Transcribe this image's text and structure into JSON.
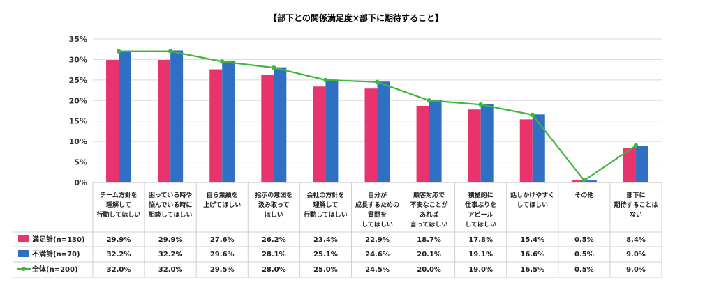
{
  "chart_data": {
    "type": "bar",
    "title": "【部下との関係満足度×部下に期待すること】",
    "categories": [
      [
        "チーム方針を",
        "理解して",
        "行動してほしい"
      ],
      [
        "困っている時や",
        "悩んでいる時に",
        "相談してほしい"
      ],
      [
        "自ら業績を",
        "上げてほしい"
      ],
      [
        "指示の意図を",
        "汲み取って",
        "ほしい"
      ],
      [
        "会社の方針を",
        "理解して",
        "行動してほしい"
      ],
      [
        "自分が",
        "成長するための",
        "質問を",
        "してほしい"
      ],
      [
        "顧客対応で",
        "不安なことが",
        "あれば",
        "言ってほしい"
      ],
      [
        "積極的に",
        "仕事ぶりを",
        "アピール",
        "してほしい"
      ],
      [
        "話しかけやすく",
        "してほしい"
      ],
      [
        "その他"
      ],
      [
        "部下に",
        "期待することは",
        "ない"
      ]
    ],
    "ylim": [
      0,
      35
    ],
    "yticks": [
      "0%",
      "5%",
      "10%",
      "15%",
      "20%",
      "25%",
      "30%",
      "35%"
    ],
    "series": [
      {
        "name": "満足計(n=130)",
        "kind": "bar",
        "color": "#e8336d",
        "values": [
          29.9,
          29.9,
          27.6,
          26.2,
          23.4,
          22.9,
          18.7,
          17.8,
          15.4,
          0.5,
          8.4
        ],
        "labels": [
          "29.9%",
          "29.9%",
          "27.6%",
          "26.2%",
          "23.4%",
          "22.9%",
          "18.7%",
          "17.8%",
          "15.4%",
          "0.5%",
          "8.4%"
        ]
      },
      {
        "name": "不満計(n=70)",
        "kind": "bar",
        "color": "#2f6fc4",
        "values": [
          32.2,
          32.2,
          29.6,
          28.1,
          25.1,
          24.6,
          20.1,
          19.1,
          16.6,
          0.5,
          9.0
        ],
        "labels": [
          "32.2%",
          "32.2%",
          "29.6%",
          "28.1%",
          "25.1%",
          "24.6%",
          "20.1%",
          "19.1%",
          "16.6%",
          "0.5%",
          "9.0%"
        ]
      },
      {
        "name": "全体(n=200)",
        "kind": "line",
        "color": "#3db83a",
        "values": [
          32.0,
          32.0,
          29.5,
          28.0,
          25.0,
          24.5,
          20.0,
          19.0,
          16.5,
          0.5,
          9.0
        ],
        "labels": [
          "32.0%",
          "32.0%",
          "29.5%",
          "28.0%",
          "25.0%",
          "24.5%",
          "20.0%",
          "19.0%",
          "16.5%",
          "0.5%",
          "9.0%"
        ]
      }
    ],
    "grid": true,
    "data_table": true
  }
}
